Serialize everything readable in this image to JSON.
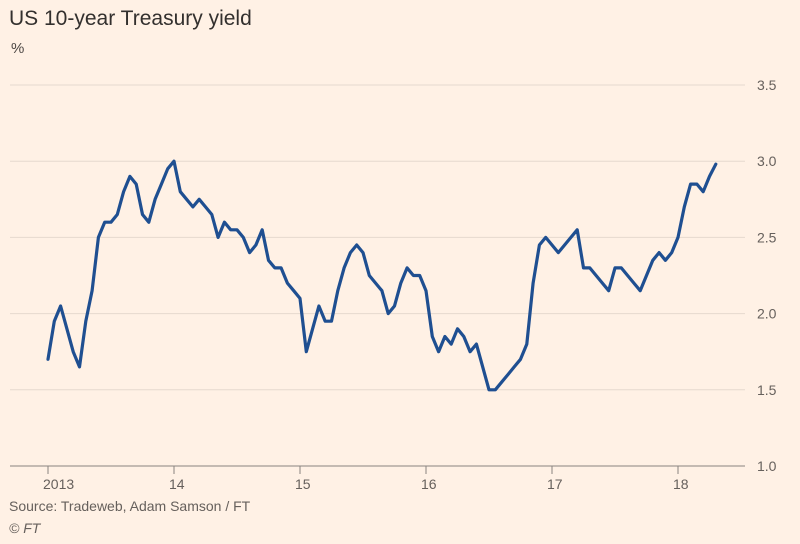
{
  "title": "US 10-year Treasury yield",
  "unit": "%",
  "source": "Source: Tradeweb, Adam Samson / FT",
  "copyright": "© FT",
  "colors": {
    "background": "#fff1e5",
    "line": "#1f4f91",
    "grid": "#e6d9ce",
    "axis": "#66605c"
  },
  "chart_data": {
    "type": "line",
    "title": "US 10-year Treasury yield",
    "ylabel": "%",
    "xlabel": "",
    "ylim": [
      1.0,
      3.5
    ],
    "yticks": [
      1.0,
      1.5,
      2.0,
      2.5,
      3.0,
      3.5
    ],
    "ytick_labels": [
      "1.0",
      "1.5",
      "2.0",
      "2.5",
      "3.0",
      "3.5"
    ],
    "xticks": [
      2013,
      2014,
      2015,
      2016,
      2017,
      2018
    ],
    "xtick_labels": [
      "2013",
      "14",
      "15",
      "16",
      "17",
      "18"
    ],
    "xlim": [
      2012.95,
      2018.45
    ],
    "grid": true,
    "series": [
      {
        "x": [
          2013.0,
          2013.05,
          2013.1,
          2013.15,
          2013.2,
          2013.25,
          2013.3,
          2013.35,
          2013.4,
          2013.45,
          2013.5,
          2013.55,
          2013.6,
          2013.65,
          2013.7,
          2013.75,
          2013.8,
          2013.85,
          2013.9,
          2013.95,
          2014.0,
          2014.05,
          2014.1,
          2014.15,
          2014.2,
          2014.25,
          2014.3,
          2014.35,
          2014.4,
          2014.45,
          2014.5,
          2014.55,
          2014.6,
          2014.65,
          2014.7,
          2014.75,
          2014.8,
          2014.85,
          2014.9,
          2014.95,
          2015.0,
          2015.05,
          2015.1,
          2015.15,
          2015.2,
          2015.25,
          2015.3,
          2015.35,
          2015.4,
          2015.45,
          2015.5,
          2015.55,
          2015.6,
          2015.65,
          2015.7,
          2015.75,
          2015.8,
          2015.85,
          2015.9,
          2015.95,
          2016.0,
          2016.05,
          2016.1,
          2016.15,
          2016.2,
          2016.25,
          2016.3,
          2016.35,
          2016.4,
          2016.45,
          2016.5,
          2016.55,
          2016.6,
          2016.65,
          2016.7,
          2016.75,
          2016.8,
          2016.85,
          2016.9,
          2016.95,
          2017.0,
          2017.05,
          2017.1,
          2017.15,
          2017.2,
          2017.25,
          2017.3,
          2017.35,
          2017.4,
          2017.45,
          2017.5,
          2017.55,
          2017.6,
          2017.65,
          2017.7,
          2017.75,
          2017.8,
          2017.85,
          2017.9,
          2017.95,
          2018.0,
          2018.05,
          2018.1,
          2018.15,
          2018.2,
          2018.25,
          2018.3
        ],
        "values": [
          1.7,
          1.95,
          2.05,
          1.9,
          1.75,
          1.65,
          1.95,
          2.15,
          2.5,
          2.6,
          2.6,
          2.65,
          2.8,
          2.9,
          2.85,
          2.65,
          2.6,
          2.75,
          2.85,
          2.95,
          3.0,
          2.8,
          2.75,
          2.7,
          2.75,
          2.7,
          2.65,
          2.5,
          2.6,
          2.55,
          2.55,
          2.5,
          2.4,
          2.45,
          2.55,
          2.35,
          2.3,
          2.3,
          2.2,
          2.15,
          2.1,
          1.75,
          1.9,
          2.05,
          1.95,
          1.95,
          2.15,
          2.3,
          2.4,
          2.45,
          2.4,
          2.25,
          2.2,
          2.15,
          2.0,
          2.05,
          2.2,
          2.3,
          2.25,
          2.25,
          2.15,
          1.85,
          1.75,
          1.85,
          1.8,
          1.9,
          1.85,
          1.75,
          1.8,
          1.65,
          1.5,
          1.5,
          1.55,
          1.6,
          1.65,
          1.7,
          1.8,
          2.2,
          2.45,
          2.5,
          2.45,
          2.4,
          2.45,
          2.5,
          2.55,
          2.3,
          2.3,
          2.25,
          2.2,
          2.15,
          2.3,
          2.3,
          2.25,
          2.2,
          2.15,
          2.25,
          2.35,
          2.4,
          2.35,
          2.4,
          2.5,
          2.7,
          2.85,
          2.85,
          2.8,
          2.9,
          2.98
        ]
      }
    ]
  }
}
